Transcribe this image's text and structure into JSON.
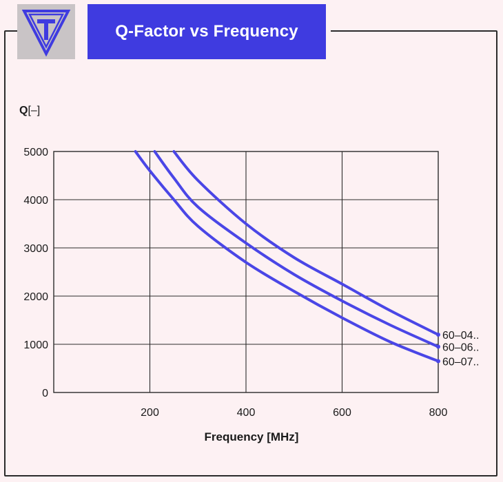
{
  "header": {
    "logo_letter": "T",
    "title": "Q-Factor vs Frequency"
  },
  "colors": {
    "title_bg": "#3f3be0",
    "curve": "#4a46e6",
    "logo_bg": "#c9c4c6",
    "logo_mark": "#3f3be0"
  },
  "chart_data": {
    "type": "line",
    "title": "Q-Factor vs Frequency",
    "xlabel": "Frequency [MHz]",
    "ylabel_bold": "Q",
    "ylabel_rest": "[–]",
    "xlim": [
      0,
      800
    ],
    "ylim": [
      0,
      5000
    ],
    "xticks": [
      200,
      400,
      600,
      800
    ],
    "yticks": [
      0,
      1000,
      2000,
      3000,
      4000,
      5000
    ],
    "grid": true,
    "series": [
      {
        "name": "60–04..",
        "x": [
          250,
          300,
          400,
          500,
          600,
          700,
          800
        ],
        "values": [
          5000,
          4400,
          3500,
          2800,
          2250,
          1700,
          1200
        ]
      },
      {
        "name": "60–06..",
        "x": [
          210,
          250,
          300,
          400,
          500,
          600,
          700,
          800
        ],
        "values": [
          5000,
          4450,
          3850,
          3100,
          2450,
          1900,
          1400,
          950
        ]
      },
      {
        "name": "60–07..",
        "x": [
          170,
          200,
          250,
          300,
          400,
          500,
          600,
          700,
          800
        ],
        "values": [
          5000,
          4600,
          4000,
          3450,
          2700,
          2100,
          1550,
          1050,
          650
        ]
      }
    ]
  }
}
